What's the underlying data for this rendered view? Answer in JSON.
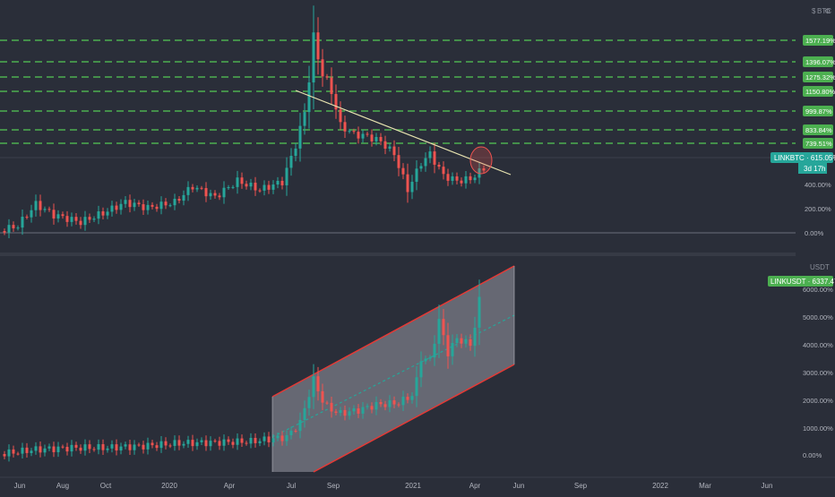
{
  "chart_data": [
    {
      "type": "candlestick",
      "pair": "LINKBTC",
      "currency_label": "BTC",
      "price_label": "LINKBTC · 615.05%",
      "countdown_label": "3d 17h",
      "y_ticks": [
        "200.00%",
        "400.00%",
        "0.00%"
      ],
      "resistance_levels": [
        "1577.19%",
        "1396.07%",
        "1275.32%",
        "1150.80%",
        "999.87%",
        "833.84%",
        "739.51%"
      ],
      "ylim": [
        -100,
        1700
      ],
      "annotations": [
        "descending trendline",
        "circle at breakout"
      ]
    },
    {
      "type": "candlestick",
      "pair": "LINKUSDT",
      "currency_label": "USDT",
      "price_label": "LINKUSDT · 6337.47%",
      "y_ticks": [
        "6000.00%",
        "5000.00%",
        "4000.00%",
        "3000.00%",
        "2000.00%",
        "1000.00%",
        "0.00%"
      ],
      "ylim": [
        -800,
        7000
      ],
      "annotations": [
        "ascending parallel channel"
      ]
    }
  ],
  "x_axis": {
    "labels": [
      "Jun",
      "Aug",
      "Oct",
      "2020",
      "Apr",
      "Jul",
      "Sep",
      "2021",
      "Apr",
      "Jun",
      "Sep",
      "2022",
      "Mar",
      "Jun"
    ]
  },
  "colors": {
    "background": "#2a2e39",
    "up": "#26a69a",
    "down": "#ef5350",
    "level_line": "#4caf50",
    "channel": "#e53935",
    "trendline": "#e8e4b0"
  },
  "icons": {
    "currency": "currency-icon",
    "settings": "settings-icon"
  }
}
